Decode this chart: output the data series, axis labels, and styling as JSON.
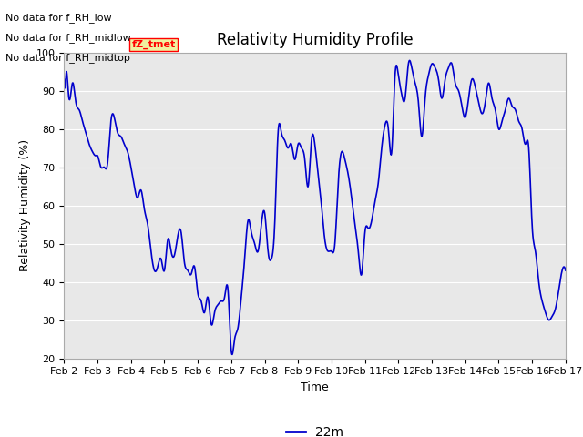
{
  "title": "Relativity Humidity Profile",
  "xlabel": "Time",
  "ylabel": "Relativity Humidity (%)",
  "ylim": [
    20,
    100
  ],
  "yticks": [
    20,
    30,
    40,
    50,
    60,
    70,
    80,
    90,
    100
  ],
  "line_color": "#0000cc",
  "line_width": 1.2,
  "legend_label": "22m",
  "legend_line_color": "#0000cc",
  "fig_bg_color": "#ffffff",
  "plot_bg_color": "#e8e8e8",
  "no_data_texts": [
    "No data for f_RH_low",
    "No data for f_RH_midlow",
    "No data for f_RH_midtop"
  ],
  "watermark_text": "fZ_tmet",
  "xtick_labels": [
    "Feb 2",
    "Feb 3",
    "Feb 4",
    "Feb 5",
    "Feb 6",
    "Feb 7",
    "Feb 8",
    "Feb 9",
    "Feb 10",
    "Feb 11",
    "Feb 12",
    "Feb 13",
    "Feb 14",
    "Feb 15",
    "Feb 16",
    "Feb 17"
  ],
  "title_fontsize": 12,
  "axis_label_fontsize": 9,
  "tick_fontsize": 8,
  "legend_fontsize": 10
}
